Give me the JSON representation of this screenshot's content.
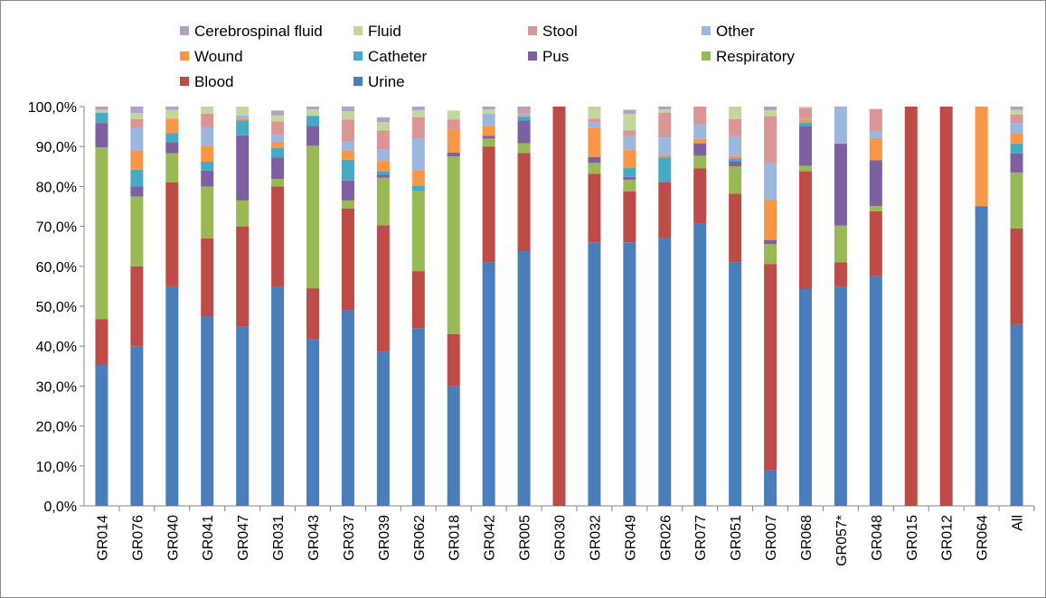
{
  "chart_data": {
    "type": "bar",
    "stacked": true,
    "title": "",
    "xlabel": "",
    "ylabel": "",
    "ylim": [
      0,
      100
    ],
    "y_ticks": [
      "0,0%",
      "10,0%",
      "20,0%",
      "30,0%",
      "40,0%",
      "50,0%",
      "60,0%",
      "70,0%",
      "80,0%",
      "90,0%",
      "100,0%"
    ],
    "grid": false,
    "legend": "top",
    "categories": [
      "GR014",
      "GR076",
      "GR040",
      "GR041",
      "GR047",
      "GR031",
      "GR043",
      "GR037",
      "GR039",
      "GR062",
      "GR018",
      "GR042",
      "GR005",
      "GR030",
      "GR032",
      "GR049",
      "GR026",
      "GR077",
      "GR051",
      "GR007",
      "GR068",
      "GR057*",
      "GR048",
      "GR015",
      "GR012",
      "GR064",
      "All"
    ],
    "series": [
      {
        "name": "Urine",
        "color": "#4a7ebb",
        "values": [
          35.3,
          40,
          55,
          47.5,
          45,
          54.8,
          41.7,
          49,
          38.6,
          44.5,
          30,
          61,
          63.8,
          0,
          66,
          66,
          67,
          70.8,
          61,
          8.9,
          54.3,
          54.8,
          57.5,
          0,
          0,
          75,
          45.5
        ]
      },
      {
        "name": "Blood",
        "color": "#be4b48",
        "values": [
          11.5,
          20,
          26,
          19.5,
          25,
          25.2,
          12.8,
          25.5,
          31.7,
          14.3,
          13,
          29,
          24.6,
          100,
          17.2,
          12.8,
          14,
          13.7,
          17.2,
          51.7,
          29.5,
          6.2,
          16.3,
          100,
          100,
          0,
          24
        ]
      },
      {
        "name": "Respiratory",
        "color": "#98b954",
        "values": [
          43,
          17.5,
          7.3,
          13,
          6.5,
          1.9,
          35.7,
          2,
          11.9,
          20,
          44.5,
          2,
          2.4,
          0,
          2.7,
          2.9,
          0,
          3.2,
          6.8,
          5,
          1.4,
          9.2,
          1.3,
          0,
          0,
          0,
          14
        ]
      },
      {
        "name": "Pus",
        "color": "#7d60a0",
        "values": [
          6.1,
          2.5,
          2.8,
          4,
          16.3,
          5.4,
          5,
          5,
          0.8,
          0,
          1,
          0.7,
          5.7,
          0,
          1.5,
          0.7,
          0,
          3.1,
          1.3,
          1,
          10,
          20.5,
          11.5,
          0,
          0,
          0,
          4.8
        ]
      },
      {
        "name": "Catheter",
        "color": "#46aac5",
        "values": [
          2.6,
          4.2,
          2.3,
          2.2,
          3.7,
          2.3,
          2.5,
          5.2,
          0.8,
          1.3,
          0,
          0,
          0.9,
          0,
          0,
          2.2,
          6.3,
          0,
          0.7,
          0,
          0.8,
          0,
          0,
          0,
          0,
          0,
          2.5
        ]
      },
      {
        "name": "Wound",
        "color": "#f79646",
        "values": [
          0,
          4.8,
          3.6,
          4,
          0.5,
          1.6,
          0,
          2.3,
          2.6,
          4,
          5.8,
          2.5,
          0.2,
          0,
          7.2,
          4.5,
          0.5,
          1.1,
          0.6,
          10.1,
          0.8,
          0,
          5.5,
          0,
          0,
          25,
          2.6
        ]
      },
      {
        "name": "Other",
        "color": "#9bb7dd",
        "values": [
          0,
          5.7,
          0,
          4.5,
          0.8,
          1.8,
          0,
          2.2,
          2.8,
          8,
          0,
          3,
          0.8,
          0,
          1.4,
          3.5,
          4.5,
          3.6,
          5,
          9.1,
          0.4,
          9.3,
          1.8,
          0,
          0,
          0,
          2.5
        ]
      },
      {
        "name": "Stool",
        "color": "#d99694",
        "values": [
          0,
          2.2,
          0,
          3.5,
          0,
          3.3,
          0,
          5.6,
          4.8,
          5.2,
          2.5,
          0,
          0.8,
          0,
          1,
          1.4,
          6.2,
          4.5,
          4.3,
          11.8,
          2.4,
          0,
          5.5,
          0,
          0,
          0,
          2.1
        ]
      },
      {
        "name": "Fluid",
        "color": "#c3d69b",
        "values": [
          0.7,
          1.5,
          2.2,
          1.8,
          2.2,
          1.5,
          1.6,
          2,
          2.1,
          1.8,
          2.2,
          1.1,
          0,
          0,
          3,
          4.2,
          0.8,
          0,
          3.1,
          1.5,
          0.4,
          0,
          0,
          0,
          0,
          0,
          1.2
        ]
      },
      {
        "name": "Cerebrospinal fluid",
        "color": "#b2a1c7",
        "values": [
          0.8,
          1.6,
          0.8,
          0,
          0,
          1.2,
          0.7,
          1.2,
          1.2,
          0.9,
          0,
          0.7,
          0.8,
          0,
          0,
          1,
          0.7,
          0,
          0,
          0.9,
          0,
          0,
          0,
          0,
          0,
          0,
          0.8
        ]
      }
    ],
    "legend_order": [
      "Cerebrospinal fluid",
      "Fluid",
      "Stool",
      "Other",
      "Wound",
      "Catheter",
      "Pus",
      "Respiratory",
      "Blood",
      "Urine"
    ]
  }
}
